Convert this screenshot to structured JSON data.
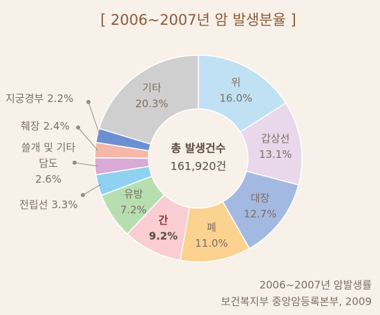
{
  "chart_data": {
    "type": "donut",
    "title": "[ 2006~2007년 암 발생분율 ]",
    "center_text": [
      "총 발생건수",
      "161,920건"
    ],
    "categories": [
      "위",
      "갑상선",
      "대장",
      "폐",
      "간",
      "유방",
      "전립선",
      "쓸개 및 기타 담도",
      "췌장",
      "지궁경부",
      "기타"
    ],
    "values": [
      16.0,
      13.1,
      12.7,
      11.0,
      9.2,
      7.2,
      3.3,
      2.6,
      2.4,
      2.2,
      20.3
    ],
    "value_labels": [
      "16.0%",
      "13.1%",
      "12.7%",
      "11.0%",
      "9.2%",
      "7.2%",
      "3.3%",
      "2.6%",
      "2.4%",
      "2.2%",
      "20.3%"
    ],
    "colors": [
      "#c0e1f3",
      "#e9d7eb",
      "#a4b9e1",
      "#fcd290",
      "#f9cdd1",
      "#b7deb1",
      "#8ed1f1",
      "#d8aad5",
      "#f4b7aa",
      "#6b8fd3",
      "#cfcfcf"
    ],
    "source": [
      "2006~2007년 암발생률",
      "보건복지부 중앙암등록본부, 2009"
    ]
  }
}
